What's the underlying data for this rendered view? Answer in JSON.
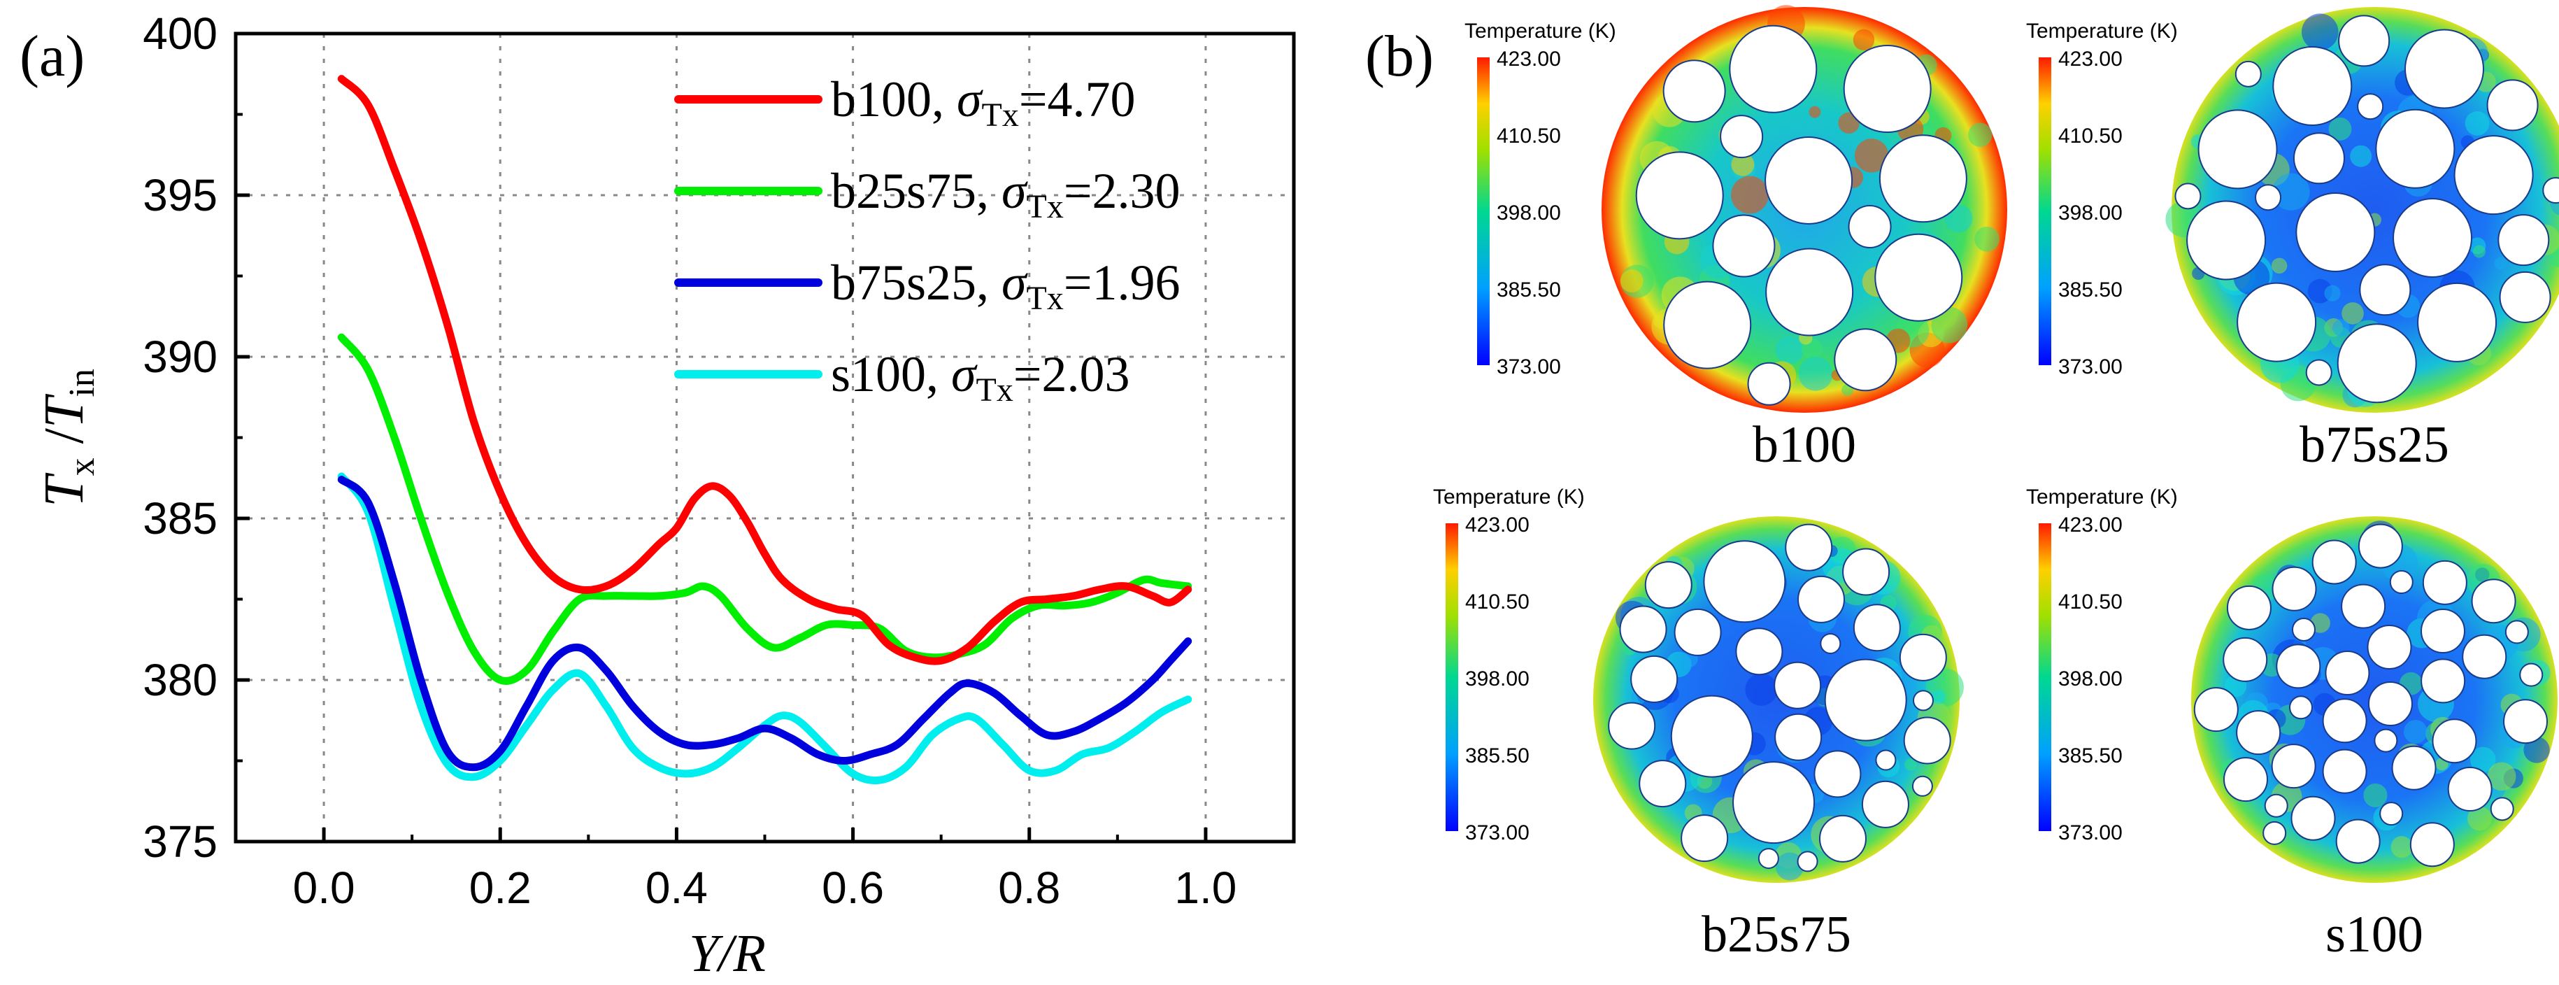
{
  "panel_a": {
    "label": "(a)",
    "ylabel_main": "T",
    "ylabel_sub1": "x",
    "ylabel_mid": " /",
    "ylabel_main2": "T",
    "ylabel_sub2": "in",
    "xlabel": "Y/R"
  },
  "panel_b": {
    "label": "(b)",
    "colorbar_title": "Temperature (K)",
    "colorbar_ticks": [
      "423.00",
      "410.50",
      "398.00",
      "385.50",
      "373.00"
    ],
    "maps": [
      {
        "name": "b100"
      },
      {
        "name": "b75s25"
      },
      {
        "name": "b25s75"
      },
      {
        "name": "s100"
      }
    ]
  },
  "colors": {
    "b100": "#ff0000",
    "b25s75": "#00ee00",
    "b75s25": "#0000dd",
    "s100": "#00eeee"
  },
  "chart_data": {
    "type": "line",
    "xlabel": "Y/R",
    "ylabel": "T_x /T_in",
    "xlim": [
      -0.1,
      1.1
    ],
    "ylim": [
      375,
      400
    ],
    "xticks": [
      0.0,
      0.2,
      0.4,
      0.6,
      0.8,
      1.0
    ],
    "xtick_labels": [
      "0.0",
      "0.2",
      "0.4",
      "0.6",
      "0.8",
      "1.0"
    ],
    "yticks": [
      375,
      380,
      385,
      390,
      395,
      400
    ],
    "ytick_labels": [
      "375",
      "380",
      "385",
      "390",
      "395",
      "400"
    ],
    "grid": true,
    "legend_position": "top-right",
    "series": [
      {
        "name": "b100",
        "sigma_label": "=4.70",
        "x": [
          0.02,
          0.05,
          0.08,
          0.11,
          0.14,
          0.17,
          0.2,
          0.23,
          0.26,
          0.29,
          0.32,
          0.35,
          0.38,
          0.4,
          0.42,
          0.44,
          0.46,
          0.48,
          0.5,
          0.52,
          0.55,
          0.58,
          0.61,
          0.64,
          0.67,
          0.7,
          0.73,
          0.76,
          0.79,
          0.82,
          0.85,
          0.88,
          0.91,
          0.94,
          0.96,
          0.98
        ],
        "y": [
          398.6,
          397.8,
          395.8,
          393.6,
          391.0,
          388.0,
          385.8,
          384.2,
          383.2,
          382.8,
          382.9,
          383.4,
          384.2,
          384.7,
          385.6,
          386.0,
          385.7,
          384.9,
          383.9,
          383.1,
          382.5,
          382.2,
          382.0,
          381.1,
          380.7,
          380.6,
          381.0,
          381.8,
          382.4,
          382.5,
          382.6,
          382.8,
          382.9,
          382.6,
          382.4,
          382.8
        ]
      },
      {
        "name": "b25s75",
        "sigma_label": "=2.30",
        "x": [
          0.02,
          0.05,
          0.08,
          0.11,
          0.14,
          0.17,
          0.2,
          0.23,
          0.26,
          0.29,
          0.32,
          0.35,
          0.38,
          0.41,
          0.43,
          0.45,
          0.48,
          0.51,
          0.54,
          0.57,
          0.6,
          0.63,
          0.66,
          0.69,
          0.72,
          0.75,
          0.78,
          0.81,
          0.84,
          0.87,
          0.9,
          0.93,
          0.95,
          0.98
        ],
        "y": [
          390.6,
          389.6,
          387.5,
          385.0,
          382.7,
          380.9,
          380.0,
          380.3,
          381.5,
          382.5,
          382.6,
          382.6,
          382.6,
          382.7,
          382.9,
          382.6,
          381.6,
          381.0,
          381.3,
          381.7,
          381.7,
          381.6,
          380.9,
          380.7,
          380.8,
          381.1,
          381.9,
          382.3,
          382.3,
          382.4,
          382.7,
          383.1,
          383.0,
          382.9
        ]
      },
      {
        "name": "b75s25",
        "sigma_label": "=1.96",
        "x": [
          0.02,
          0.05,
          0.08,
          0.11,
          0.14,
          0.17,
          0.2,
          0.23,
          0.26,
          0.29,
          0.32,
          0.35,
          0.38,
          0.41,
          0.44,
          0.47,
          0.5,
          0.53,
          0.56,
          0.59,
          0.62,
          0.65,
          0.68,
          0.71,
          0.73,
          0.76,
          0.79,
          0.82,
          0.85,
          0.88,
          0.91,
          0.94,
          0.96,
          0.98
        ],
        "y": [
          386.2,
          385.5,
          383.0,
          380.0,
          377.8,
          377.3,
          377.8,
          379.2,
          380.6,
          381.0,
          380.3,
          379.2,
          378.4,
          378.0,
          378.0,
          378.2,
          378.5,
          378.2,
          377.7,
          377.5,
          377.7,
          378.0,
          378.8,
          379.6,
          379.9,
          379.6,
          378.9,
          378.3,
          378.4,
          378.8,
          379.3,
          380.0,
          380.6,
          381.2
        ]
      },
      {
        "name": "s100",
        "sigma_label": "=2.03",
        "x": [
          0.02,
          0.05,
          0.08,
          0.11,
          0.14,
          0.17,
          0.2,
          0.23,
          0.26,
          0.29,
          0.32,
          0.35,
          0.38,
          0.41,
          0.44,
          0.47,
          0.5,
          0.52,
          0.54,
          0.57,
          0.6,
          0.63,
          0.66,
          0.69,
          0.72,
          0.74,
          0.77,
          0.8,
          0.83,
          0.86,
          0.89,
          0.92,
          0.95,
          0.98
        ],
        "y": [
          386.3,
          385.2,
          382.2,
          379.2,
          377.4,
          377.0,
          377.5,
          378.6,
          379.7,
          380.2,
          379.2,
          377.9,
          377.3,
          377.1,
          377.3,
          377.9,
          378.6,
          378.9,
          378.7,
          377.9,
          377.1,
          376.9,
          377.3,
          378.3,
          378.8,
          378.8,
          378.0,
          377.2,
          377.2,
          377.7,
          377.9,
          378.4,
          379.0,
          379.4
        ]
      }
    ]
  }
}
